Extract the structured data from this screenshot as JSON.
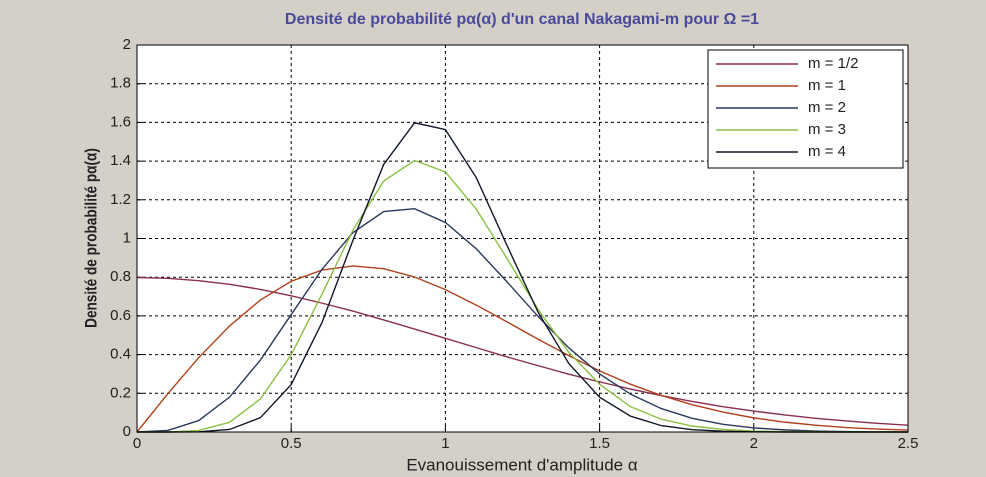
{
  "chart_data": {
    "type": "line",
    "title": "Densité de probabilité pα(α) d'un canal Nakagami-m pour Ω =1",
    "xlabel": "Evanouissement d'amplitude α",
    "ylabel": "Densité de probabilité pα(α)",
    "x": [
      0,
      0.1,
      0.2,
      0.3,
      0.4,
      0.5,
      0.6,
      0.7,
      0.8,
      0.9,
      1.0,
      1.1,
      1.2,
      1.3,
      1.4,
      1.5,
      1.6,
      1.7,
      1.8,
      1.9,
      2.0,
      2.1,
      2.2,
      2.3,
      2.4,
      2.5
    ],
    "series": [
      {
        "name": "m = 1/2",
        "color": "#8a2f4f",
        "values": [
          0.798,
          0.794,
          0.782,
          0.763,
          0.737,
          0.704,
          0.666,
          0.625,
          0.579,
          0.532,
          0.484,
          0.436,
          0.388,
          0.343,
          0.299,
          0.259,
          0.222,
          0.188,
          0.158,
          0.131,
          0.108,
          0.088,
          0.071,
          0.057,
          0.045,
          0.035
        ]
      },
      {
        "name": "m = 1",
        "color": "#b0401c",
        "values": [
          0,
          0.198,
          0.384,
          0.548,
          0.682,
          0.779,
          0.837,
          0.858,
          0.844,
          0.801,
          0.736,
          0.656,
          0.569,
          0.48,
          0.395,
          0.316,
          0.247,
          0.189,
          0.141,
          0.103,
          0.073,
          0.051,
          0.035,
          0.023,
          0.015,
          0.01
        ]
      },
      {
        "name": "m = 2",
        "color": "#2a3a5a",
        "values": [
          0,
          0.008,
          0.059,
          0.18,
          0.372,
          0.607,
          0.841,
          1.03,
          1.139,
          1.154,
          1.083,
          0.947,
          0.776,
          0.598,
          0.435,
          0.3,
          0.196,
          0.121,
          0.071,
          0.04,
          0.021,
          0.011,
          0.005,
          0.002,
          0.001,
          0
        ]
      },
      {
        "name": "m = 3",
        "color": "#8cc043",
        "values": [
          0,
          0,
          0.008,
          0.05,
          0.171,
          0.399,
          0.713,
          1.043,
          1.297,
          1.403,
          1.344,
          1.152,
          0.896,
          0.635,
          0.412,
          0.247,
          0.131,
          0.066,
          0.031,
          0.013,
          0.005,
          0.002,
          0.001,
          0,
          0,
          0
        ]
      },
      {
        "name": "m = 4",
        "color": "#101828",
        "values": [
          0,
          0,
          0.001,
          0.013,
          0.074,
          0.245,
          0.566,
          0.99,
          1.383,
          1.598,
          1.563,
          1.315,
          0.963,
          0.621,
          0.354,
          0.18,
          0.082,
          0.033,
          0.012,
          0.004,
          0.001,
          0,
          0,
          0,
          0,
          0
        ]
      }
    ],
    "xlim": [
      0,
      2.5
    ],
    "xticks": [
      0,
      0.5,
      1,
      1.5,
      2,
      2.5
    ],
    "ylim": [
      0,
      2
    ],
    "yticks": [
      0,
      0.2,
      0.4,
      0.6,
      0.8,
      1,
      1.2,
      1.4,
      1.6,
      1.8,
      2
    ],
    "grid": true,
    "legend": "upper right"
  }
}
